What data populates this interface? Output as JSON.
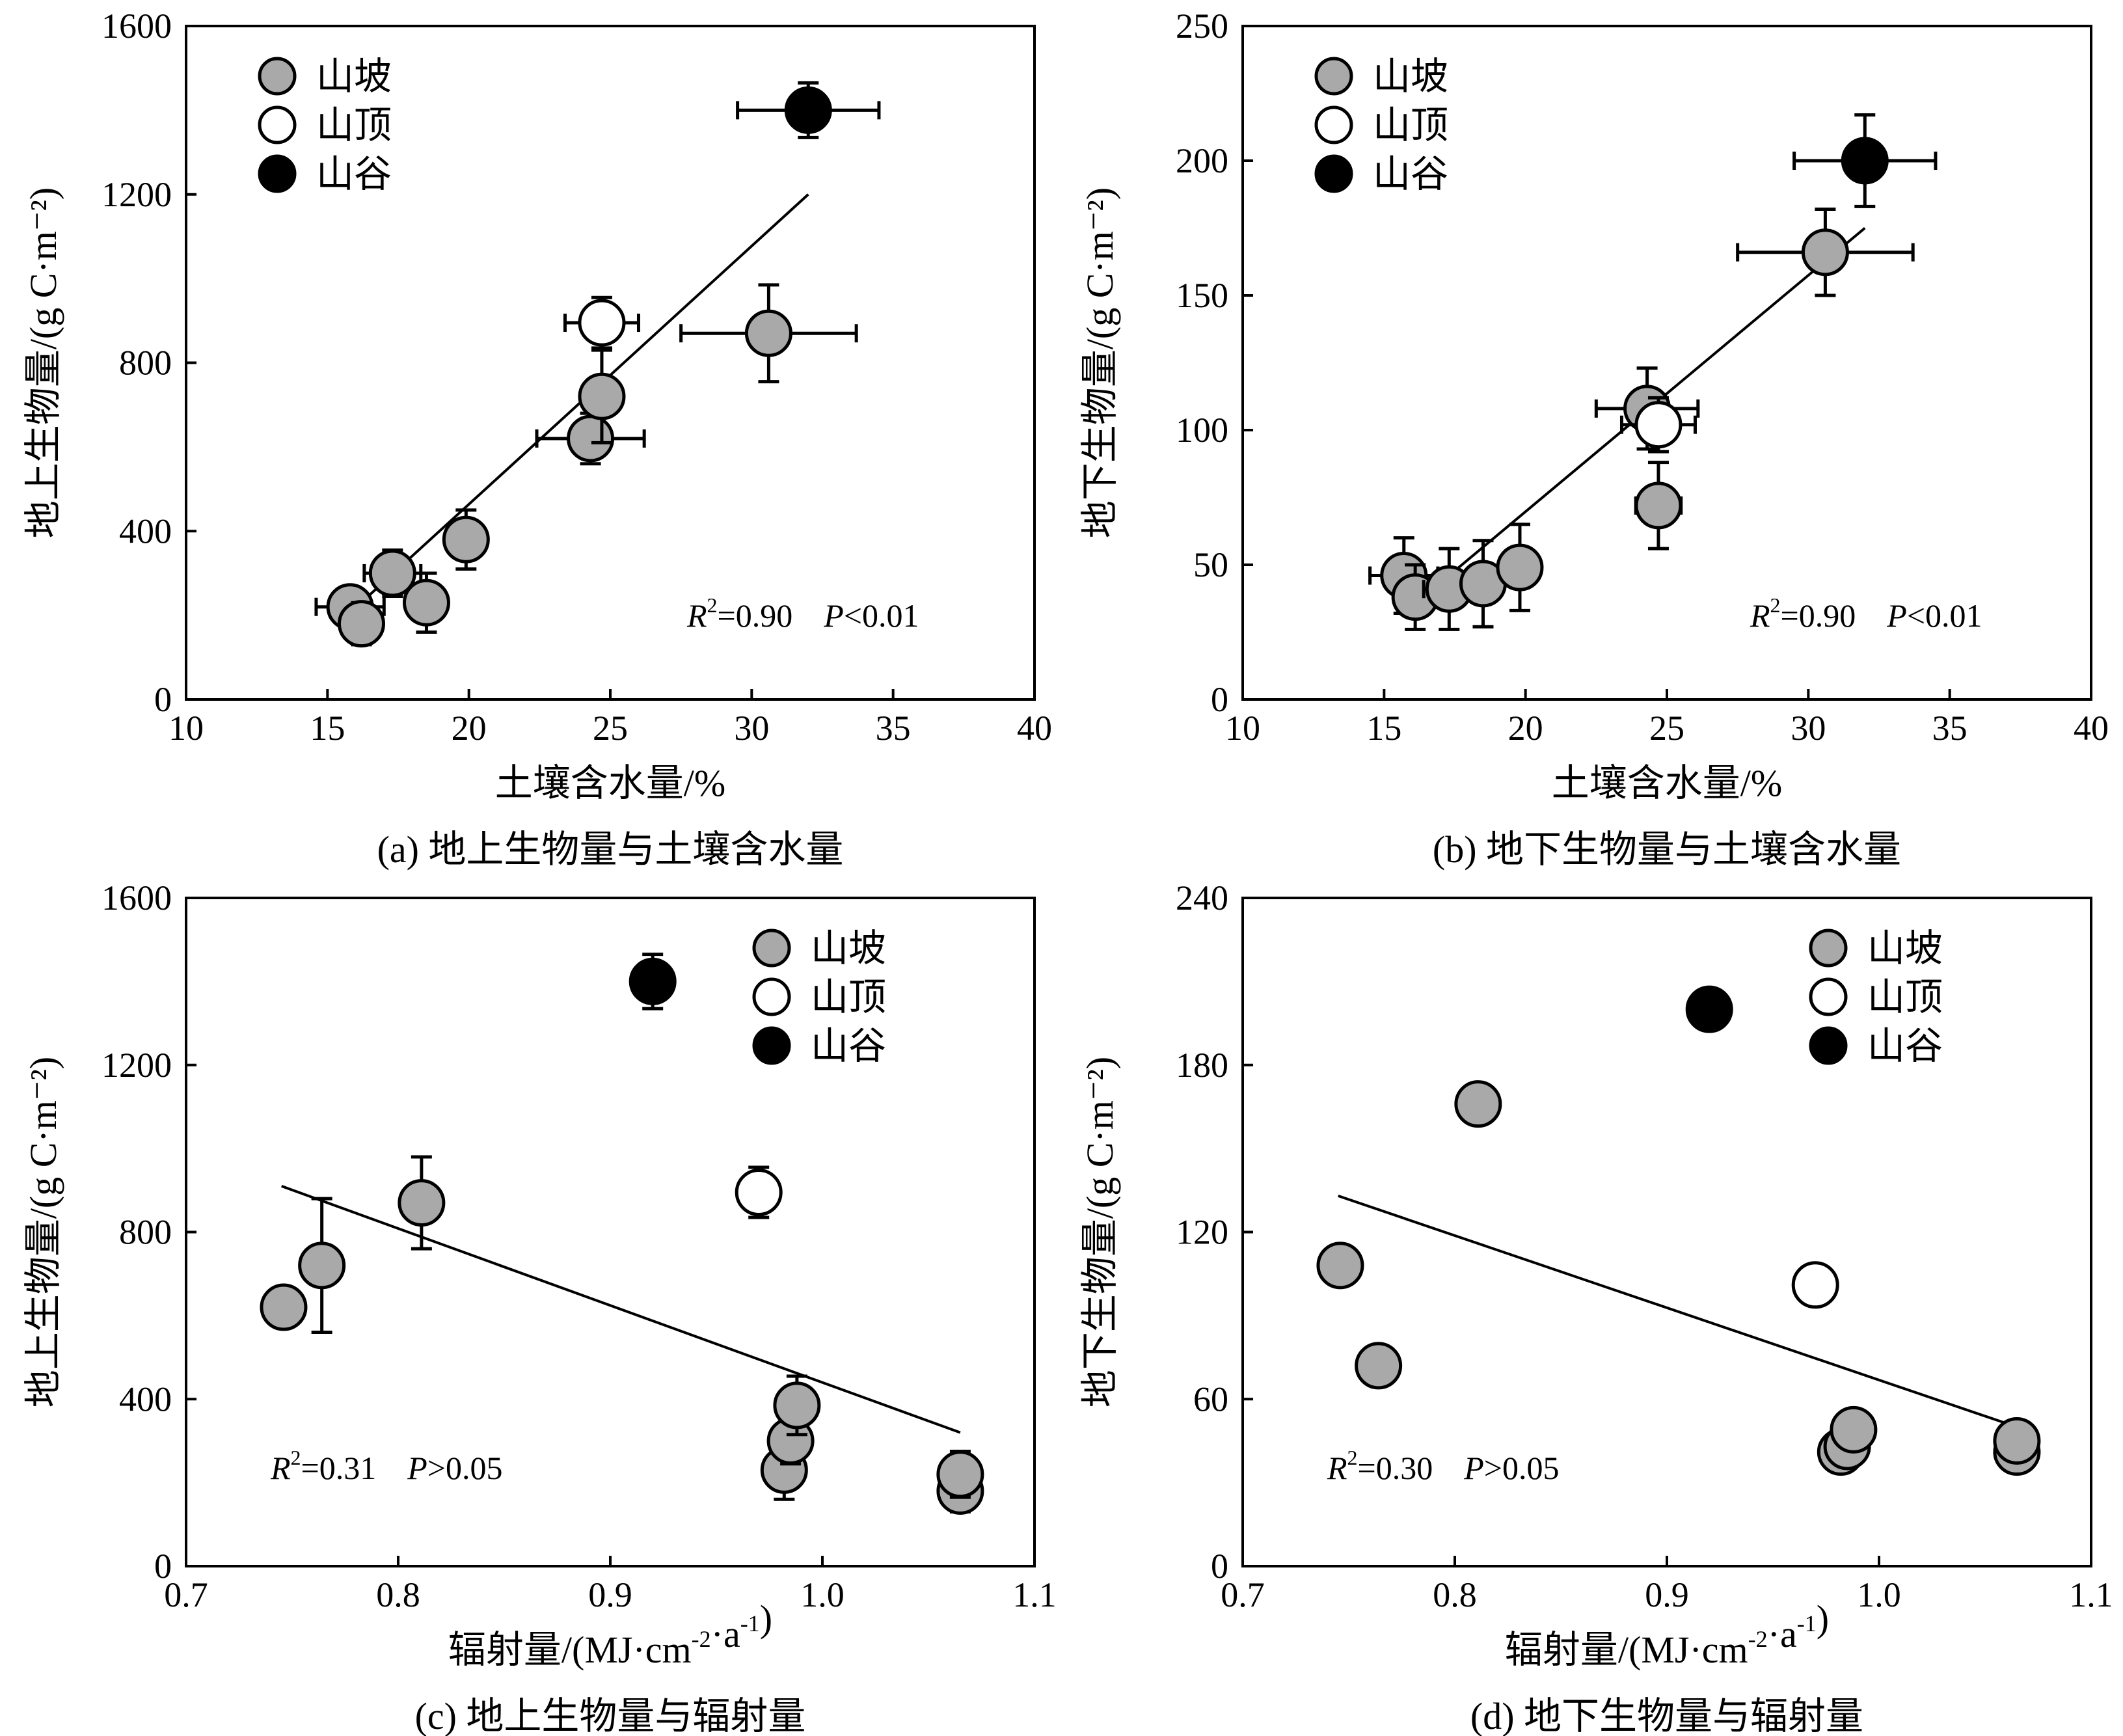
{
  "chart_data": [
    {
      "type": "scatter",
      "caption": "(a) 地上生物量与土壤含水量",
      "xlabel": "土壤含水量/%",
      "ylabel": "地上生物量/(g C·m⁻²)",
      "xlim": [
        10,
        40
      ],
      "ylim": [
        0,
        1600
      ],
      "xticks": [
        "10",
        "15",
        "20",
        "25",
        "30",
        "35",
        "40"
      ],
      "yticks": [
        "0",
        "400",
        "800",
        "1200",
        "1600"
      ],
      "legend": {
        "position": "top-left",
        "entries": [
          "山坡",
          "山顶",
          "山谷"
        ]
      },
      "annotation": {
        "r2_prefix": "R",
        "r2_sup": "2",
        "r2_value": "=0.90",
        "p_prefix": "P",
        "p_value": "<0.01"
      },
      "fit_line": {
        "x": [
          15.7,
          32.0
        ],
        "y": [
          200,
          1200
        ]
      },
      "series": [
        {
          "name": "山坡",
          "color": "#a9a9a9",
          "points": [
            {
              "x": 15.8,
              "y": 220,
              "xerr": 1.2,
              "yerr": 45
            },
            {
              "x": 16.2,
              "y": 180,
              "xerr": 0.6,
              "yerr": 50
            },
            {
              "x": 17.3,
              "y": 300,
              "xerr": 1.0,
              "yerr": 55
            },
            {
              "x": 18.5,
              "y": 230,
              "xerr": 0.5,
              "yerr": 70
            },
            {
              "x": 19.9,
              "y": 380,
              "xerr": 0.4,
              "yerr": 70
            },
            {
              "x": 24.3,
              "y": 620,
              "xerr": 1.9,
              "yerr": 60
            },
            {
              "x": 24.7,
              "y": 720,
              "xerr": 0.6,
              "yerr": 110
            },
            {
              "x": 30.6,
              "y": 870,
              "xerr": 3.1,
              "yerr": 115
            }
          ]
        },
        {
          "name": "山顶",
          "color": "#ffffff",
          "points": [
            {
              "x": 24.7,
              "y": 895,
              "xerr": 1.3,
              "yerr": 60
            }
          ]
        },
        {
          "name": "山谷",
          "color": "#000000",
          "points": [
            {
              "x": 32.0,
              "y": 1400,
              "xerr": 2.5,
              "yerr": 65
            }
          ]
        }
      ]
    },
    {
      "type": "scatter",
      "caption": "(b) 地下生物量与土壤含水量",
      "xlabel": "土壤含水量/%",
      "ylabel": "地下生物量/(g C·m⁻²)",
      "xlim": [
        10,
        40
      ],
      "ylim": [
        0,
        250
      ],
      "xticks": [
        "10",
        "15",
        "20",
        "25",
        "30",
        "35",
        "40"
      ],
      "yticks": [
        "0",
        "50",
        "100",
        "150",
        "200",
        "250"
      ],
      "legend": {
        "position": "top-left",
        "entries": [
          "山坡",
          "山顶",
          "山谷"
        ]
      },
      "annotation": {
        "r2_prefix": "R",
        "r2_sup": "2",
        "r2_value": "=0.90",
        "p_prefix": "P",
        "p_value": "<0.01"
      },
      "fit_line": {
        "x": [
          15.7,
          32.0
        ],
        "y": [
          32,
          175
        ]
      },
      "series": [
        {
          "name": "山坡",
          "color": "#a9a9a9",
          "points": [
            {
              "x": 15.7,
              "y": 46,
              "xerr": 1.2,
              "yerr": 14
            },
            {
              "x": 16.1,
              "y": 38,
              "xerr": 0.6,
              "yerr": 12
            },
            {
              "x": 17.3,
              "y": 41,
              "xerr": 0.9,
              "yerr": 15
            },
            {
              "x": 18.5,
              "y": 43,
              "xerr": 0.7,
              "yerr": 16
            },
            {
              "x": 19.8,
              "y": 49,
              "xerr": 0.6,
              "yerr": 16
            },
            {
              "x": 24.3,
              "y": 108,
              "xerr": 1.8,
              "yerr": 15
            },
            {
              "x": 24.7,
              "y": 72,
              "xerr": 0.8,
              "yerr": 16
            },
            {
              "x": 30.6,
              "y": 166,
              "xerr": 3.1,
              "yerr": 16
            }
          ]
        },
        {
          "name": "山顶",
          "color": "#ffffff",
          "points": [
            {
              "x": 24.7,
              "y": 102,
              "xerr": 1.3,
              "yerr": 10
            }
          ]
        },
        {
          "name": "山谷",
          "color": "#000000",
          "points": [
            {
              "x": 32.0,
              "y": 200,
              "xerr": 2.5,
              "yerr": 17
            }
          ]
        }
      ]
    },
    {
      "type": "scatter",
      "caption": "(c) 地上生物量与辐射量",
      "xlabel_main": "辐射量/(MJ·cm",
      "xlabel_sup1": "-2",
      "xlabel_mid": "·a",
      "xlabel_sup2": "-1",
      "xlabel_end": ")",
      "ylabel": "地上生物量/(g C·m⁻²)",
      "xlim": [
        0.7,
        1.1
      ],
      "ylim": [
        0,
        1600
      ],
      "xticks": [
        "0.7",
        "0.8",
        "0.9",
        "1.0",
        "1.1"
      ],
      "yticks": [
        "0",
        "400",
        "800",
        "1200",
        "1600"
      ],
      "legend": {
        "position": "top-right",
        "entries": [
          "山坡",
          "山顶",
          "山谷"
        ]
      },
      "annotation": {
        "r2_prefix": "R",
        "r2_sup": "2",
        "r2_value": "=0.31",
        "p_prefix": "P",
        "p_value": ">0.05"
      },
      "fit_line": {
        "x": [
          0.745,
          1.065
        ],
        "y": [
          910,
          320
        ]
      },
      "series": [
        {
          "name": "山坡",
          "color": "#a9a9a9",
          "points": [
            {
              "x": 0.746,
              "y": 620,
              "xerr": 0,
              "yerr": 0
            },
            {
              "x": 0.764,
              "y": 720,
              "xerr": 0,
              "yerr": 160
            },
            {
              "x": 0.811,
              "y": 870,
              "xerr": 0,
              "yerr": 110
            },
            {
              "x": 0.982,
              "y": 230,
              "xerr": 0,
              "yerr": 70
            },
            {
              "x": 0.985,
              "y": 300,
              "xerr": 0,
              "yerr": 55
            },
            {
              "x": 0.988,
              "y": 385,
              "xerr": 0,
              "yerr": 70
            },
            {
              "x": 1.065,
              "y": 180,
              "xerr": 0,
              "yerr": 50
            },
            {
              "x": 1.065,
              "y": 220,
              "xerr": 0,
              "yerr": 55
            }
          ]
        },
        {
          "name": "山顶",
          "color": "#ffffff",
          "points": [
            {
              "x": 0.97,
              "y": 895,
              "xerr": 0,
              "yerr": 60
            }
          ]
        },
        {
          "name": "山谷",
          "color": "#000000",
          "points": [
            {
              "x": 0.92,
              "y": 1400,
              "xerr": 0,
              "yerr": 65
            }
          ]
        }
      ]
    },
    {
      "type": "scatter",
      "caption": "(d) 地下生物量与辐射量",
      "xlabel_main": "辐射量/(MJ·cm",
      "xlabel_sup1": "-2",
      "xlabel_mid": "·a",
      "xlabel_sup2": "-1",
      "xlabel_end": ")",
      "ylabel": "地下生物量/(g C·m⁻²)",
      "xlim": [
        0.7,
        1.1
      ],
      "ylim": [
        0,
        240
      ],
      "xticks": [
        "0.7",
        "0.8",
        "0.9",
        "1.0",
        "1.1"
      ],
      "yticks": [
        "0",
        "60",
        "120",
        "180",
        "240"
      ],
      "legend": {
        "position": "top-right",
        "entries": [
          "山坡",
          "山顶",
          "山谷"
        ]
      },
      "annotation": {
        "r2_prefix": "R",
        "r2_sup": "2",
        "r2_value": "=0.30",
        "p_prefix": "P",
        "p_value": ">0.05"
      },
      "fit_line": {
        "x": [
          0.745,
          1.065
        ],
        "y": [
          133,
          50
        ]
      },
      "series": [
        {
          "name": "山坡",
          "color": "#a9a9a9",
          "points": [
            {
              "x": 0.746,
              "y": 108
            },
            {
              "x": 0.764,
              "y": 72
            },
            {
              "x": 0.811,
              "y": 166
            },
            {
              "x": 0.982,
              "y": 41
            },
            {
              "x": 0.985,
              "y": 43
            },
            {
              "x": 0.988,
              "y": 49
            },
            {
              "x": 1.065,
              "y": 41
            },
            {
              "x": 1.065,
              "y": 45
            }
          ]
        },
        {
          "name": "山顶",
          "color": "#ffffff",
          "points": [
            {
              "x": 0.97,
              "y": 101
            }
          ]
        },
        {
          "name": "山谷",
          "color": "#000000",
          "points": [
            {
              "x": 0.92,
              "y": 200
            }
          ]
        }
      ]
    }
  ]
}
